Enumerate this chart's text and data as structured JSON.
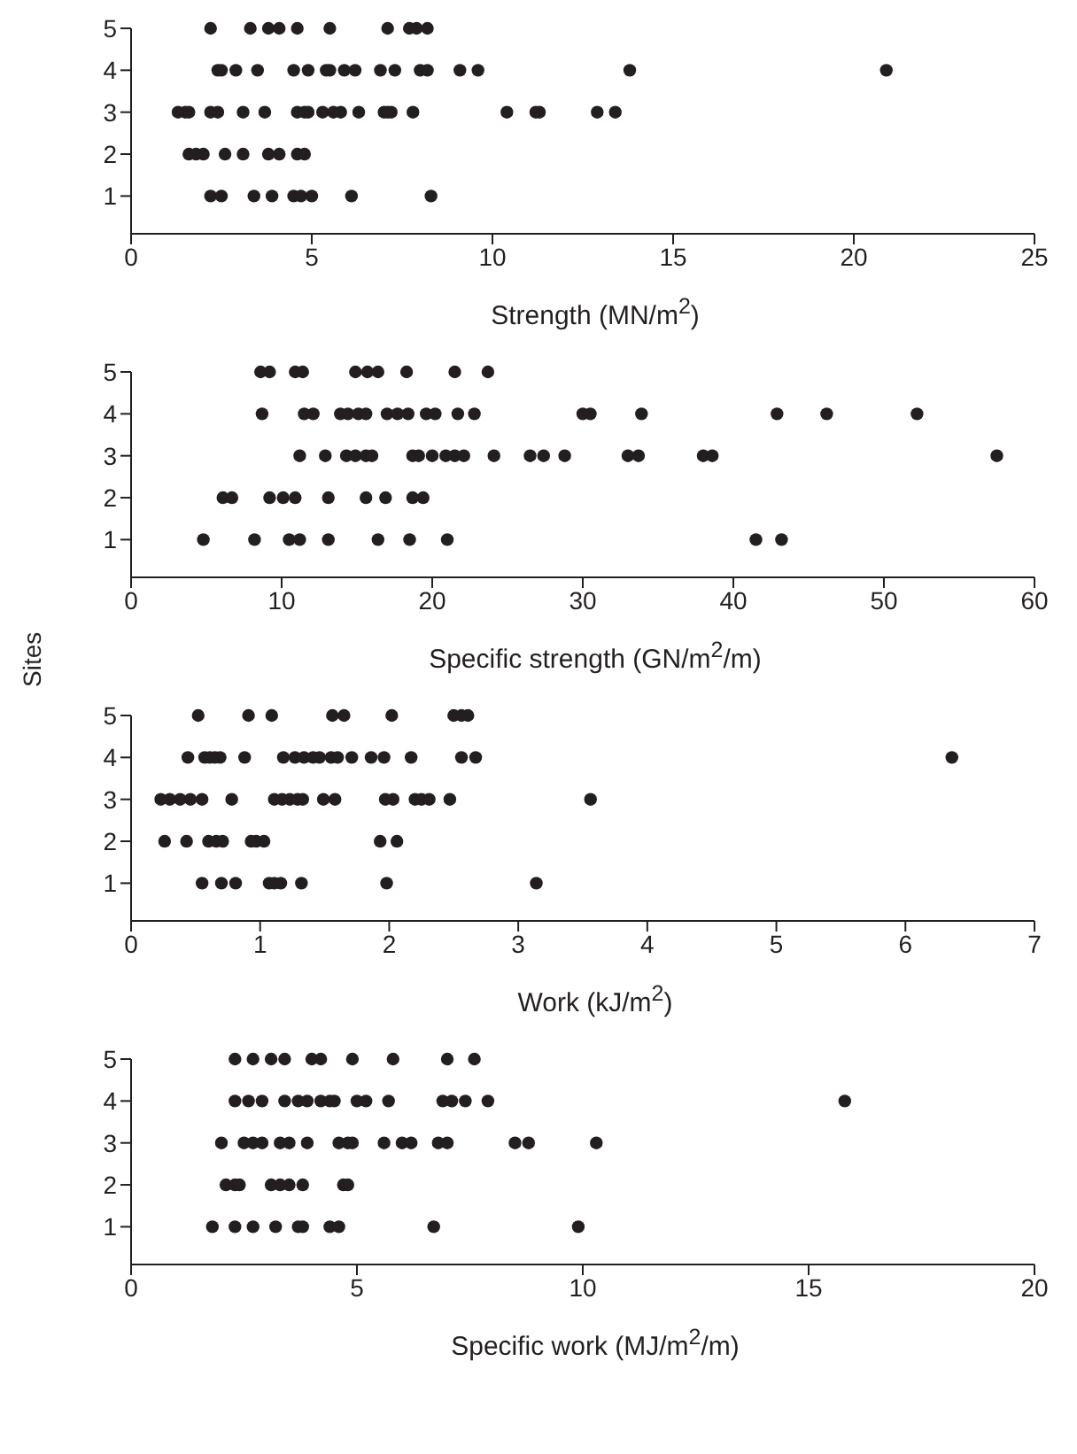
{
  "chart_data": [
    {
      "type": "scatter",
      "xlabel": "Strength (MN/m$^{2}$)",
      "xlim": [
        0,
        25
      ],
      "xticks": [
        0,
        5,
        10,
        15,
        20,
        25
      ],
      "ylim": [
        0.1,
        5
      ],
      "yticks": [
        1,
        2,
        3,
        4,
        5
      ],
      "grid": false,
      "legend": false,
      "marker": "circle",
      "series": [
        {
          "color": "#231f20",
          "x": [
            2.2,
            3.3,
            3.8,
            4.1,
            4.6,
            5.5,
            7.1,
            7.7,
            7.9,
            8.2,
            2.4,
            2.5,
            2.9,
            3.5,
            4.5,
            4.9,
            5.4,
            5.5,
            5.9,
            6.2,
            6.9,
            7.3,
            8.0,
            8.2,
            9.1,
            9.6,
            13.8,
            20.9,
            1.3,
            1.5,
            1.6,
            2.2,
            2.4,
            3.1,
            3.7,
            4.6,
            4.8,
            4.9,
            5.3,
            5.6,
            5.8,
            6.3,
            7.0,
            7.1,
            7.2,
            7.8,
            10.4,
            11.2,
            11.3,
            12.9,
            13.4,
            1.6,
            1.8,
            2.0,
            2.6,
            3.1,
            3.8,
            4.1,
            4.6,
            4.8,
            2.2,
            2.5,
            3.4,
            3.9,
            4.5,
            4.7,
            5.0,
            6.1,
            8.3
          ],
          "values": [
            5,
            5,
            5,
            5,
            5,
            5,
            5,
            5,
            5,
            5,
            4,
            4,
            4,
            4,
            4,
            4,
            4,
            4,
            4,
            4,
            4,
            4,
            4,
            4,
            4,
            4,
            4,
            4,
            3,
            3,
            3,
            3,
            3,
            3,
            3,
            3,
            3,
            3,
            3,
            3,
            3,
            3,
            3,
            3,
            3,
            3,
            3,
            3,
            3,
            3,
            3,
            2,
            2,
            2,
            2,
            2,
            2,
            2,
            2,
            2,
            1,
            1,
            1,
            1,
            1,
            1,
            1,
            1,
            1
          ]
        }
      ]
    },
    {
      "type": "scatter",
      "xlabel": "Specific strength (GN/m$^{2}$/m)",
      "ylabel": "Sites",
      "xlim": [
        0,
        60
      ],
      "xticks": [
        0,
        10,
        20,
        30,
        40,
        50,
        60
      ],
      "ylim": [
        0.1,
        5
      ],
      "yticks": [
        1,
        2,
        3,
        4,
        5
      ],
      "grid": false,
      "legend": false,
      "marker": "circle",
      "series": [
        {
          "color": "#231f20",
          "x": [
            8.6,
            9.2,
            10.9,
            11.4,
            14.9,
            15.7,
            16.4,
            18.3,
            21.5,
            23.7,
            8.7,
            11.5,
            12.1,
            13.9,
            14.4,
            15.1,
            15.6,
            17.0,
            17.7,
            18.4,
            19.6,
            20.2,
            21.7,
            22.8,
            30.0,
            30.5,
            33.9,
            42.9,
            46.2,
            52.2,
            11.2,
            12.9,
            14.3,
            14.9,
            15.6,
            16.0,
            18.7,
            19.1,
            20.0,
            20.9,
            21.5,
            22.1,
            24.1,
            26.5,
            27.4,
            28.8,
            33.0,
            33.7,
            38.0,
            38.6,
            57.5,
            6.1,
            6.7,
            9.2,
            10.1,
            10.9,
            13.1,
            15.6,
            16.9,
            18.7,
            19.4,
            4.8,
            8.2,
            10.5,
            11.2,
            13.1,
            16.4,
            18.5,
            21.0,
            41.5,
            43.2
          ],
          "values": [
            5,
            5,
            5,
            5,
            5,
            5,
            5,
            5,
            5,
            5,
            4,
            4,
            4,
            4,
            4,
            4,
            4,
            4,
            4,
            4,
            4,
            4,
            4,
            4,
            4,
            4,
            4,
            4,
            4,
            4,
            3,
            3,
            3,
            3,
            3,
            3,
            3,
            3,
            3,
            3,
            3,
            3,
            3,
            3,
            3,
            3,
            3,
            3,
            3,
            3,
            3,
            2,
            2,
            2,
            2,
            2,
            2,
            2,
            2,
            2,
            2,
            1,
            1,
            1,
            1,
            1,
            1,
            1,
            1,
            1,
            1
          ]
        }
      ]
    },
    {
      "type": "scatter",
      "xlabel": "Work (kJ/m$^{2}$)",
      "xlim": [
        0,
        7
      ],
      "xticks": [
        0,
        1,
        2,
        3,
        4,
        5,
        6,
        7
      ],
      "ylim": [
        0.1,
        5
      ],
      "yticks": [
        1,
        2,
        3,
        4,
        5
      ],
      "grid": false,
      "legend": false,
      "marker": "circle",
      "series": [
        {
          "color": "#231f20",
          "x": [
            0.52,
            0.91,
            1.09,
            1.56,
            1.65,
            2.02,
            2.5,
            2.56,
            2.61,
            0.44,
            0.57,
            0.61,
            0.65,
            0.69,
            0.88,
            1.18,
            1.27,
            1.34,
            1.41,
            1.46,
            1.55,
            1.6,
            1.71,
            1.86,
            1.96,
            2.17,
            2.56,
            2.67,
            6.36,
            0.23,
            0.3,
            0.38,
            0.46,
            0.55,
            0.78,
            1.11,
            1.17,
            1.23,
            1.29,
            1.33,
            1.49,
            1.58,
            1.97,
            2.03,
            2.2,
            2.25,
            2.31,
            2.47,
            3.56,
            0.26,
            0.43,
            0.6,
            0.66,
            0.71,
            0.93,
            0.97,
            1.03,
            1.93,
            2.06,
            0.55,
            0.7,
            0.81,
            1.07,
            1.11,
            1.16,
            1.32,
            1.98,
            3.14
          ],
          "values": [
            5,
            5,
            5,
            5,
            5,
            5,
            5,
            5,
            5,
            4,
            4,
            4,
            4,
            4,
            4,
            4,
            4,
            4,
            4,
            4,
            4,
            4,
            4,
            4,
            4,
            4,
            4,
            4,
            4,
            3,
            3,
            3,
            3,
            3,
            3,
            3,
            3,
            3,
            3,
            3,
            3,
            3,
            3,
            3,
            3,
            3,
            3,
            3,
            3,
            2,
            2,
            2,
            2,
            2,
            2,
            2,
            2,
            2,
            2,
            1,
            1,
            1,
            1,
            1,
            1,
            1,
            1,
            1
          ]
        }
      ]
    },
    {
      "type": "scatter",
      "xlabel": "Specific work (MJ/m$^{2}$/m)",
      "xlim": [
        0,
        20
      ],
      "xticks": [
        0,
        5,
        10,
        15,
        20
      ],
      "ylim": [
        0.1,
        5
      ],
      "yticks": [
        1,
        2,
        3,
        4,
        5
      ],
      "grid": false,
      "legend": false,
      "marker": "circle",
      "series": [
        {
          "color": "#231f20",
          "x": [
            2.3,
            2.7,
            3.1,
            3.4,
            4.0,
            4.2,
            4.9,
            5.8,
            7.0,
            7.6,
            2.3,
            2.6,
            2.9,
            3.4,
            3.7,
            3.9,
            4.2,
            4.4,
            4.5,
            5.0,
            5.2,
            5.7,
            6.9,
            7.1,
            7.4,
            7.9,
            15.8,
            2.0,
            2.5,
            2.7,
            2.9,
            3.3,
            3.5,
            3.9,
            4.6,
            4.8,
            4.9,
            5.6,
            6.0,
            6.2,
            6.8,
            7.0,
            8.5,
            8.8,
            10.3,
            2.1,
            2.3,
            2.4,
            3.1,
            3.3,
            3.5,
            3.8,
            4.7,
            4.8,
            1.8,
            2.3,
            2.7,
            3.2,
            3.7,
            3.8,
            4.4,
            4.6,
            6.7,
            9.9
          ],
          "values": [
            5,
            5,
            5,
            5,
            5,
            5,
            5,
            5,
            5,
            5,
            4,
            4,
            4,
            4,
            4,
            4,
            4,
            4,
            4,
            4,
            4,
            4,
            4,
            4,
            4,
            4,
            4,
            3,
            3,
            3,
            3,
            3,
            3,
            3,
            3,
            3,
            3,
            3,
            3,
            3,
            3,
            3,
            3,
            3,
            3,
            2,
            2,
            2,
            2,
            2,
            2,
            2,
            2,
            2,
            1,
            1,
            1,
            1,
            1,
            1,
            1,
            1,
            1,
            1
          ]
        }
      ]
    }
  ]
}
